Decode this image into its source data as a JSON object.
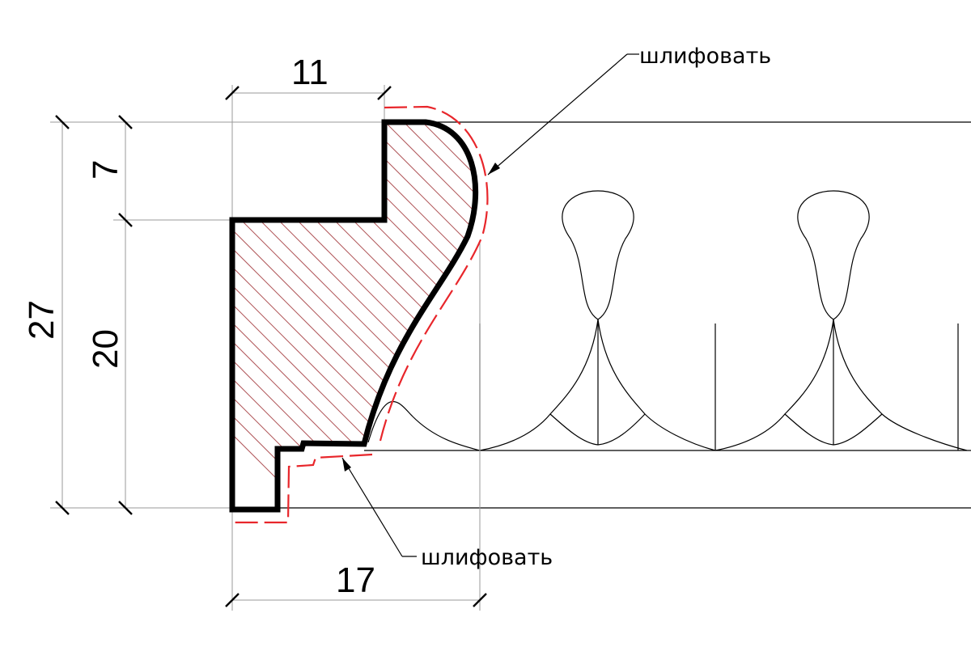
{
  "dimensions": {
    "top_width": "11",
    "bottom_width": "17",
    "total_height": "27",
    "upper_height": "7",
    "lower_height": "20"
  },
  "notes": {
    "sand_top": "шлифовать",
    "sand_bottom": "шлифовать"
  },
  "colors": {
    "outline": "#000000",
    "hatch": "#b0565a",
    "sanding_line": "#e8262b"
  }
}
